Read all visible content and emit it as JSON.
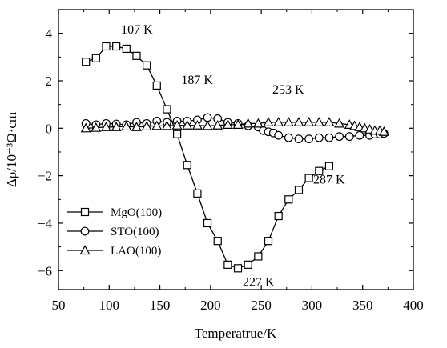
{
  "chart_data": {
    "type": "line",
    "title": "",
    "xlabel": "Temperatrue/K",
    "ylabel": "Δρ/10⁻³Ω·cm",
    "xlim": [
      50,
      400
    ],
    "ylim": [
      -6.8,
      5
    ],
    "xticks": [
      50,
      100,
      150,
      200,
      250,
      300,
      350,
      400
    ],
    "yticks": [
      -6,
      -4,
      -2,
      0,
      2,
      4
    ],
    "x_tick_labels": [
      "50",
      "100",
      "150",
      "200",
      "250",
      "300",
      "350",
      "400"
    ],
    "y_tick_labels": [
      "−6",
      "−4",
      "−2",
      "0",
      "2",
      "4"
    ],
    "grid": false,
    "legend_position": "lower-left",
    "series": [
      {
        "name": "MgO(100)",
        "marker": "square",
        "x": [
          77,
          87,
          97,
          107,
          117,
          127,
          137,
          147,
          157,
          167,
          177,
          187,
          197,
          207,
          217,
          227,
          237,
          247,
          257,
          267,
          277,
          287,
          297,
          307,
          317
        ],
        "y": [
          2.8,
          2.95,
          3.45,
          3.45,
          3.35,
          3.05,
          2.65,
          1.8,
          0.8,
          -0.25,
          -1.55,
          -2.75,
          -4.0,
          -4.75,
          -5.75,
          -5.9,
          -5.75,
          -5.4,
          -4.75,
          -3.7,
          -3.0,
          -2.6,
          -2.1,
          -1.8,
          -1.6
        ]
      },
      {
        "name": "STO(100)",
        "marker": "circle",
        "x": [
          77,
          87,
          97,
          107,
          117,
          127,
          137,
          147,
          157,
          167,
          177,
          187,
          197,
          207,
          217,
          227,
          237,
          247,
          252,
          257,
          262,
          267,
          277,
          287,
          297,
          307,
          317,
          327,
          337,
          347,
          357,
          362,
          367,
          371
        ],
        "y": [
          0.2,
          0.15,
          0.2,
          0.18,
          0.15,
          0.25,
          0.2,
          0.3,
          0.25,
          0.3,
          0.3,
          0.35,
          0.45,
          0.4,
          0.25,
          0.2,
          0.1,
          0.05,
          -0.1,
          -0.15,
          -0.2,
          -0.3,
          -0.4,
          -0.45,
          -0.45,
          -0.4,
          -0.4,
          -0.35,
          -0.35,
          -0.3,
          -0.3,
          -0.25,
          -0.25,
          -0.22
        ]
      },
      {
        "name": "LAO(100)",
        "marker": "triangle",
        "x": [
          77,
          87,
          97,
          107,
          117,
          127,
          137,
          147,
          157,
          167,
          177,
          187,
          197,
          207,
          217,
          227,
          237,
          247,
          257,
          267,
          277,
          287,
          297,
          307,
          317,
          327,
          337,
          342,
          347,
          352,
          357,
          362,
          367,
          371
        ],
        "y": [
          0.0,
          0.02,
          0.05,
          0.05,
          0.08,
          0.05,
          0.08,
          0.1,
          0.1,
          0.12,
          0.12,
          0.12,
          0.1,
          0.12,
          0.15,
          0.15,
          0.2,
          0.2,
          0.25,
          0.25,
          0.25,
          0.25,
          0.25,
          0.25,
          0.25,
          0.2,
          0.15,
          0.1,
          0.05,
          0.0,
          -0.05,
          -0.1,
          -0.1,
          -0.15
        ]
      }
    ],
    "annotations": [
      {
        "text": "107 K",
        "x": 107,
        "y": 3.45
      },
      {
        "text": "187 K",
        "x": 187,
        "y": 0.35
      },
      {
        "text": "253 K",
        "x": 253,
        "y": 0.05
      },
      {
        "text": "227 K",
        "x": 227,
        "y": -5.9
      },
      {
        "text": "287 K",
        "x": 287,
        "y": -2.6
      }
    ]
  }
}
